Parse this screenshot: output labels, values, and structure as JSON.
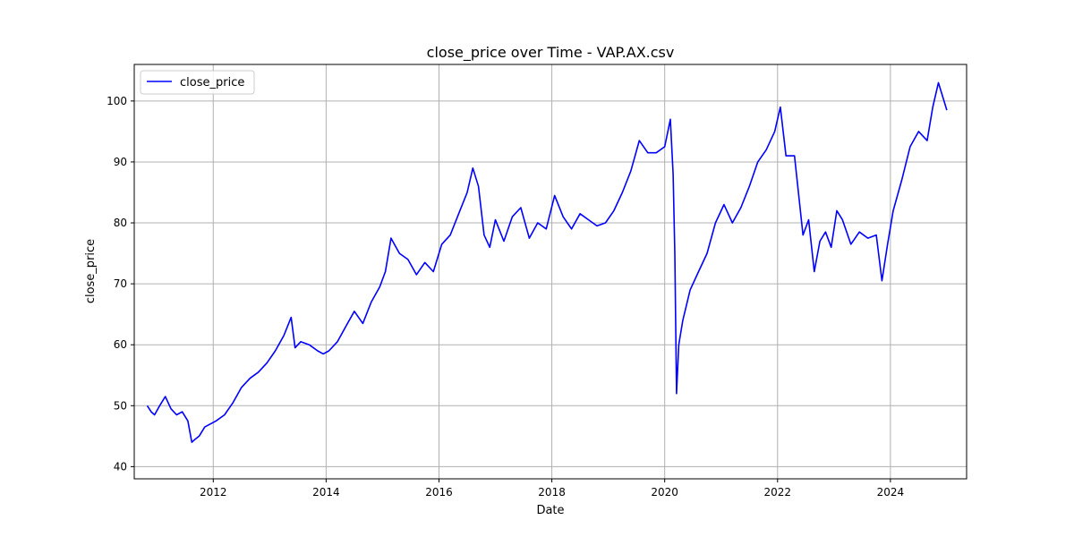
{
  "chart_data": {
    "type": "line",
    "title": "close_price over Time - VAP.AX.csv",
    "xlabel": "Date",
    "ylabel": "close_price",
    "xlim": [
      2010.6,
      2025.35
    ],
    "ylim": [
      38,
      106
    ],
    "xticks": [
      2012,
      2014,
      2016,
      2018,
      2020,
      2022,
      2024
    ],
    "yticks": [
      40,
      50,
      60,
      70,
      80,
      90,
      100
    ],
    "grid": true,
    "legend": {
      "position": "top-left"
    },
    "colors": {
      "line": "#0000ff",
      "grid": "#b0b0b0"
    },
    "series": [
      {
        "name": "close_price",
        "x": [
          2010.83,
          2010.9,
          2010.96,
          2011.05,
          2011.15,
          2011.25,
          2011.35,
          2011.45,
          2011.55,
          2011.62,
          2011.68,
          2011.75,
          2011.85,
          2011.95,
          2012.05,
          2012.2,
          2012.35,
          2012.5,
          2012.65,
          2012.8,
          2012.95,
          2013.1,
          2013.25,
          2013.38,
          2013.45,
          2013.55,
          2013.7,
          2013.85,
          2013.95,
          2014.05,
          2014.2,
          2014.35,
          2014.5,
          2014.65,
          2014.8,
          2014.95,
          2015.05,
          2015.15,
          2015.3,
          2015.45,
          2015.6,
          2015.75,
          2015.9,
          2016.05,
          2016.2,
          2016.35,
          2016.5,
          2016.6,
          2016.7,
          2016.8,
          2016.9,
          2017.0,
          2017.15,
          2017.3,
          2017.45,
          2017.6,
          2017.75,
          2017.9,
          2018.05,
          2018.2,
          2018.35,
          2018.5,
          2018.65,
          2018.8,
          2018.95,
          2019.1,
          2019.25,
          2019.4,
          2019.55,
          2019.7,
          2019.85,
          2020.0,
          2020.1,
          2020.15,
          2020.18,
          2020.21,
          2020.25,
          2020.32,
          2020.45,
          2020.6,
          2020.75,
          2020.9,
          2021.05,
          2021.2,
          2021.35,
          2021.5,
          2021.65,
          2021.8,
          2021.95,
          2022.05,
          2022.15,
          2022.3,
          2022.45,
          2022.55,
          2022.65,
          2022.75,
          2022.85,
          2022.95,
          2023.05,
          2023.15,
          2023.3,
          2023.45,
          2023.6,
          2023.75,
          2023.85,
          2023.95,
          2024.05,
          2024.2,
          2024.35,
          2024.5,
          2024.65,
          2024.75,
          2024.85,
          2024.95,
          2025.0
        ],
        "values": [
          50.0,
          49.0,
          48.5,
          50.0,
          51.5,
          49.5,
          48.5,
          49.0,
          47.5,
          44.0,
          44.5,
          45.0,
          46.5,
          47.0,
          47.5,
          48.5,
          50.5,
          53.0,
          54.5,
          55.5,
          57.0,
          59.0,
          61.5,
          64.5,
          59.5,
          60.5,
          60.0,
          59.0,
          58.5,
          59.0,
          60.5,
          63.0,
          65.5,
          63.5,
          67.0,
          69.5,
          72.0,
          77.5,
          75.0,
          74.0,
          71.5,
          73.5,
          72.0,
          76.5,
          78.0,
          81.5,
          85.0,
          89.0,
          86.0,
          78.0,
          76.0,
          80.5,
          77.0,
          81.0,
          82.5,
          77.5,
          80.0,
          79.0,
          84.5,
          81.0,
          79.0,
          81.5,
          80.5,
          79.5,
          80.0,
          82.0,
          85.0,
          88.5,
          93.5,
          91.5,
          91.5,
          92.5,
          97.0,
          88.0,
          75.0,
          52.0,
          60.0,
          64.0,
          69.0,
          72.0,
          75.0,
          80.0,
          83.0,
          80.0,
          82.5,
          86.0,
          90.0,
          92.0,
          95.0,
          99.0,
          91.0,
          91.0,
          78.0,
          80.5,
          72.0,
          77.0,
          78.5,
          76.0,
          82.0,
          80.5,
          76.5,
          78.5,
          77.5,
          78.0,
          70.5,
          76.5,
          82.0,
          87.0,
          92.5,
          95.0,
          93.5,
          99.0,
          103.0,
          100.0,
          98.5
        ]
      }
    ]
  }
}
